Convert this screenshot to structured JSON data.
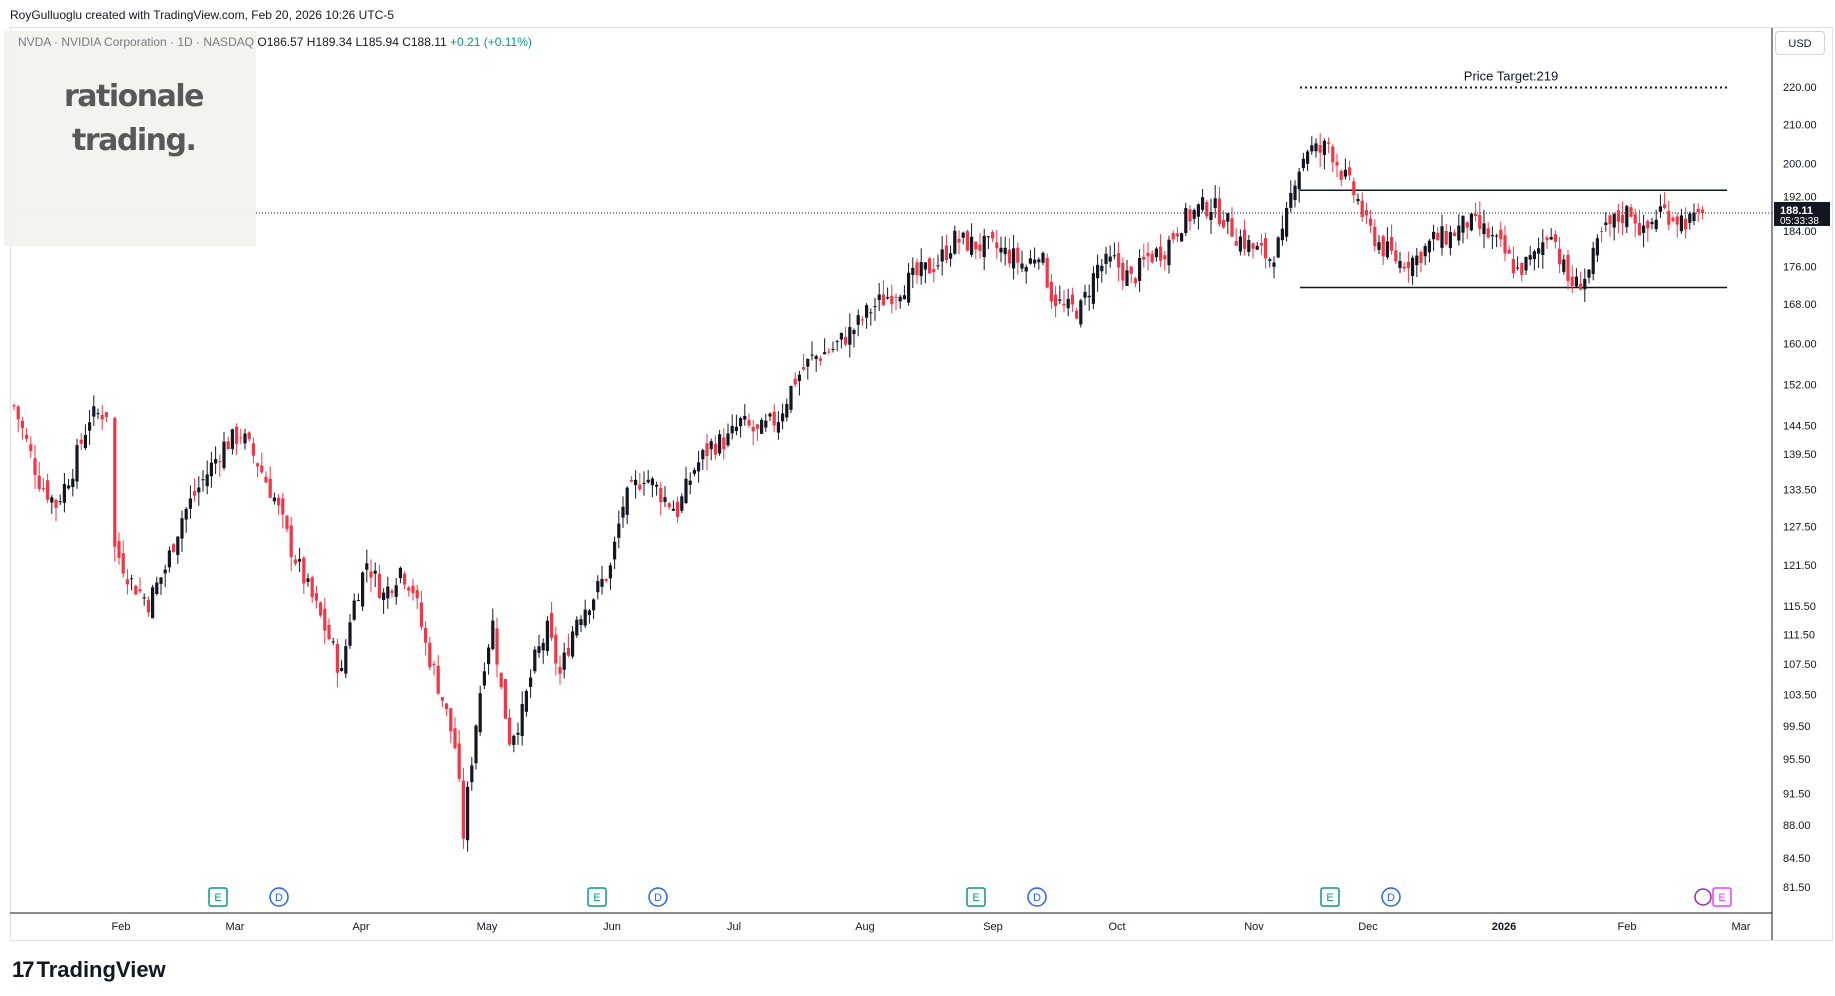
{
  "header": {
    "credit": "RoyGulluoglu created with TradingView.com, Feb 20, 2026 10:26 UTC-5"
  },
  "symbol": {
    "title": "NVDA · NVIDIA Corporation · 1D · NASDAQ",
    "ohlc": "O186.57 H189.34 L185.94 C188.11",
    "change": "+0.21 (+0.11%)"
  },
  "watermark": {
    "line1": "rationale",
    "line2": "trading."
  },
  "currency": "USD",
  "footer": {
    "logo_text": "TradingView"
  },
  "chart_data": {
    "type": "candlestick",
    "symbol": "NVDA",
    "interval": "1D",
    "last_price": "188.11",
    "countdown": "05:33:38",
    "y_scale": "log",
    "y_range": [
      79,
      232
    ],
    "y_ticks": [
      "220.00",
      "210.00",
      "200.00",
      "192.00",
      "184.00",
      "176.00",
      "168.00",
      "160.00",
      "152.00",
      "144.50",
      "139.50",
      "133.50",
      "127.50",
      "121.50",
      "115.50",
      "111.50",
      "107.50",
      "103.50",
      "99.50",
      "95.50",
      "91.50",
      "88.00",
      "84.50",
      "81.50"
    ],
    "x_labels": [
      "Feb",
      "Mar",
      "Apr",
      "May",
      "Jun",
      "Jul",
      "Aug",
      "Sep",
      "Oct",
      "Nov",
      "Dec",
      "2026",
      "Feb",
      "Mar"
    ],
    "price_target": {
      "label": "Price Target:219",
      "value": 219
    },
    "range_box": {
      "upper": 193.5,
      "lower": 171.5
    },
    "colors": {
      "up": "#131722",
      "down": "#f23645",
      "event_earnings": "#089981",
      "event_dividend": "#2962ff"
    },
    "events": [
      {
        "type": "earnings",
        "label": "E",
        "month": "Feb"
      },
      {
        "type": "dividend",
        "label": "D",
        "month": "Mar"
      },
      {
        "type": "earnings",
        "label": "E",
        "month": "May"
      },
      {
        "type": "dividend",
        "label": "D",
        "month": "Jun"
      },
      {
        "type": "earnings",
        "label": "E",
        "month": "Aug"
      },
      {
        "type": "dividend",
        "label": "D",
        "month": "Sep"
      },
      {
        "type": "earnings",
        "label": "E",
        "month": "Nov"
      },
      {
        "type": "dividend",
        "label": "D",
        "month": "Dec"
      },
      {
        "type": "earnings",
        "label": "E",
        "month": "Feb"
      }
    ],
    "close_path": [
      [
        0,
        148
      ],
      [
        6,
        135
      ],
      [
        10,
        131
      ],
      [
        14,
        137
      ],
      [
        18,
        146
      ],
      [
        22,
        147
      ],
      [
        24,
        124
      ],
      [
        28,
        119
      ],
      [
        32,
        116
      ],
      [
        36,
        121
      ],
      [
        40,
        129
      ],
      [
        45,
        135
      ],
      [
        50,
        141
      ],
      [
        54,
        143
      ],
      [
        58,
        138
      ],
      [
        62,
        132
      ],
      [
        66,
        124
      ],
      [
        70,
        118
      ],
      [
        75,
        111
      ],
      [
        78,
        106
      ],
      [
        80,
        114
      ],
      [
        84,
        122
      ],
      [
        88,
        117
      ],
      [
        92,
        121
      ],
      [
        95,
        118
      ],
      [
        98,
        110
      ],
      [
        102,
        103
      ],
      [
        105,
        97
      ],
      [
        107,
        87
      ],
      [
        110,
        100
      ],
      [
        112,
        108
      ],
      [
        114,
        113
      ],
      [
        116,
        104
      ],
      [
        118,
        98
      ],
      [
        121,
        101
      ],
      [
        124,
        108
      ],
      [
        127,
        112
      ],
      [
        130,
        106
      ],
      [
        134,
        114
      ],
      [
        138,
        117
      ],
      [
        142,
        121
      ],
      [
        145,
        131
      ],
      [
        150,
        136
      ],
      [
        155,
        132
      ],
      [
        158,
        130
      ],
      [
        162,
        137
      ],
      [
        166,
        141
      ],
      [
        170,
        142
      ],
      [
        173,
        145
      ],
      [
        177,
        143
      ],
      [
        182,
        146
      ],
      [
        186,
        153
      ],
      [
        190,
        157
      ],
      [
        195,
        159
      ],
      [
        200,
        163
      ],
      [
        204,
        167
      ],
      [
        210,
        171
      ],
      [
        215,
        174
      ],
      [
        220,
        177
      ],
      [
        224,
        182
      ],
      [
        228,
        181
      ],
      [
        234,
        180
      ],
      [
        238,
        178
      ],
      [
        241,
        176
      ],
      [
        244,
        180
      ],
      [
        247,
        170
      ],
      [
        250,
        167
      ],
      [
        254,
        167
      ],
      [
        258,
        176
      ],
      [
        262,
        177
      ],
      [
        266,
        173
      ],
      [
        270,
        178
      ],
      [
        274,
        180
      ],
      [
        278,
        186
      ],
      [
        282,
        189
      ],
      [
        285,
        190
      ],
      [
        288,
        187
      ],
      [
        291,
        183
      ],
      [
        295,
        180
      ],
      [
        299,
        178
      ],
      [
        302,
        182
      ],
      [
        305,
        197
      ],
      [
        308,
        204
      ],
      [
        311,
        203
      ],
      [
        313,
        205
      ],
      [
        316,
        198
      ],
      [
        320,
        191
      ],
      [
        322,
        185
      ],
      [
        326,
        180
      ],
      [
        330,
        177
      ],
      [
        334,
        178
      ],
      [
        338,
        182
      ],
      [
        342,
        183
      ],
      [
        346,
        186
      ],
      [
        350,
        184
      ],
      [
        354,
        180
      ],
      [
        358,
        175
      ],
      [
        362,
        178
      ],
      [
        366,
        185
      ],
      [
        368,
        178
      ],
      [
        370,
        173
      ],
      [
        372,
        172
      ],
      [
        375,
        175
      ],
      [
        378,
        183
      ],
      [
        381,
        186
      ],
      [
        385,
        189
      ],
      [
        388,
        183
      ],
      [
        392,
        189
      ],
      [
        396,
        187
      ],
      [
        400,
        186
      ],
      [
        402,
        188
      ]
    ]
  }
}
